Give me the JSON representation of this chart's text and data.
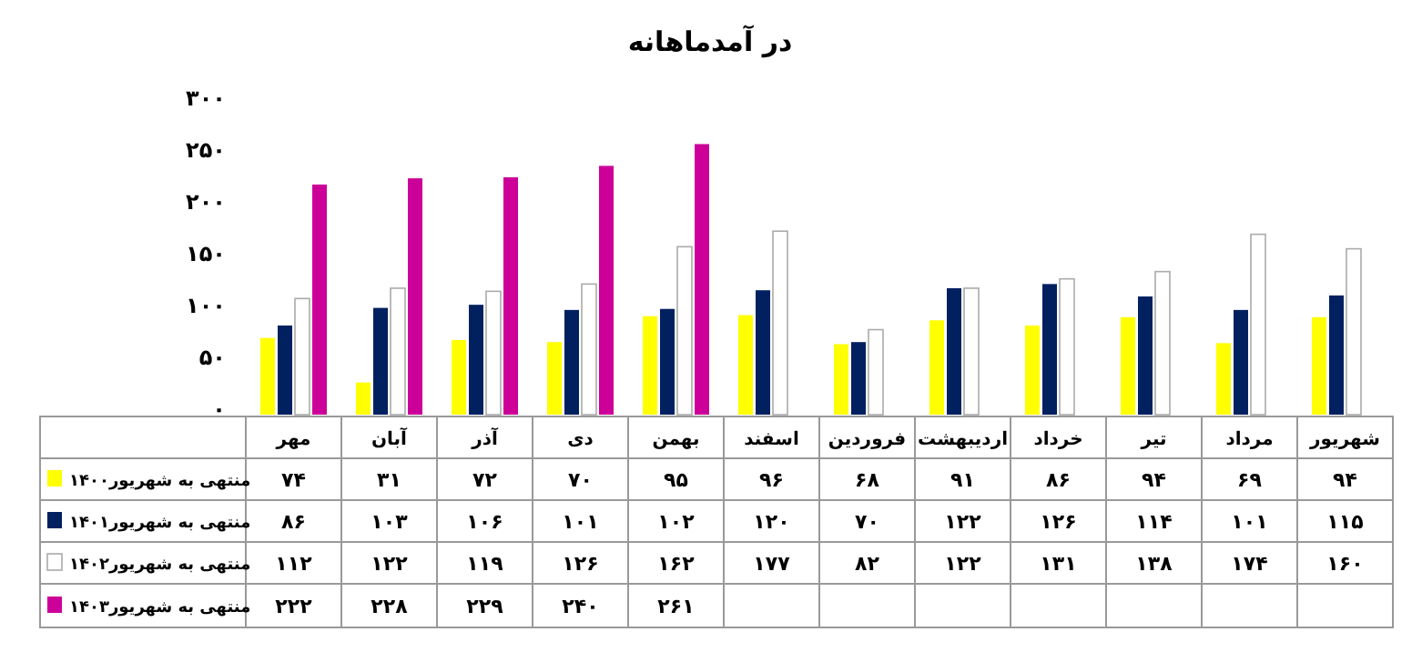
{
  "chart_data": {
    "type": "bar",
    "title": "در آمدماهانه",
    "categories": [
      "مهر",
      "آبان",
      "آذر",
      "دی",
      "بهمن",
      "اسفند",
      "فروردین",
      "اردیبهشت",
      "خرداد",
      "تیر",
      "مرداد",
      "شهریور"
    ],
    "series": [
      {
        "name": "منتهی به شهریور۱۴۰۰",
        "color": "#ffff00",
        "values": [
          74,
          31,
          72,
          70,
          95,
          96,
          68,
          91,
          86,
          94,
          69,
          94
        ],
        "value_labels": [
          "۷۴",
          "۳۱",
          "۷۲",
          "۷۰",
          "۹۵",
          "۹۶",
          "۶۸",
          "۹۱",
          "۸۶",
          "۹۴",
          "۶۹",
          "۹۴"
        ]
      },
      {
        "name": "منتهی به شهریور۱۴۰۱",
        "color": "#002060",
        "values": [
          86,
          103,
          106,
          101,
          102,
          120,
          70,
          122,
          126,
          114,
          101,
          115
        ],
        "value_labels": [
          "۸۶",
          "۱۰۳",
          "۱۰۶",
          "۱۰۱",
          "۱۰۲",
          "۱۲۰",
          "۷۰",
          "۱۲۲",
          "۱۲۶",
          "۱۱۴",
          "۱۰۱",
          "۱۱۵"
        ]
      },
      {
        "name": "منتهی به شهریور۱۴۰۲",
        "color": "#ffffff",
        "values": [
          112,
          122,
          119,
          126,
          162,
          177,
          82,
          122,
          131,
          138,
          174,
          160
        ],
        "value_labels": [
          "۱۱۲",
          "۱۲۲",
          "۱۱۹",
          "۱۲۶",
          "۱۶۲",
          "۱۷۷",
          "۸۲",
          "۱۲۲",
          "۱۳۱",
          "۱۳۸",
          "۱۷۴",
          "۱۶۰"
        ]
      },
      {
        "name": "منتهی به شهریور۱۴۰۳",
        "color": "#cc0099",
        "values": [
          222,
          228,
          229,
          240,
          261,
          null,
          null,
          null,
          null,
          null,
          null,
          null
        ],
        "value_labels": [
          "۲۲۲",
          "۲۲۸",
          "۲۲۹",
          "۲۴۰",
          "۲۶۱",
          null,
          null,
          null,
          null,
          null,
          null,
          null
        ]
      }
    ],
    "ylim": [
      0,
      300
    ],
    "yticks": [
      {
        "value": 0,
        "label": "۰"
      },
      {
        "value": 50,
        "label": "۵۰"
      },
      {
        "value": 100,
        "label": "۱۰۰"
      },
      {
        "value": 150,
        "label": "۱۵۰"
      },
      {
        "value": 200,
        "label": "۲۰۰"
      },
      {
        "value": 250,
        "label": "۲۵۰"
      },
      {
        "value": 300,
        "label": "۳۰۰"
      }
    ],
    "legend": "bottom left"
  }
}
